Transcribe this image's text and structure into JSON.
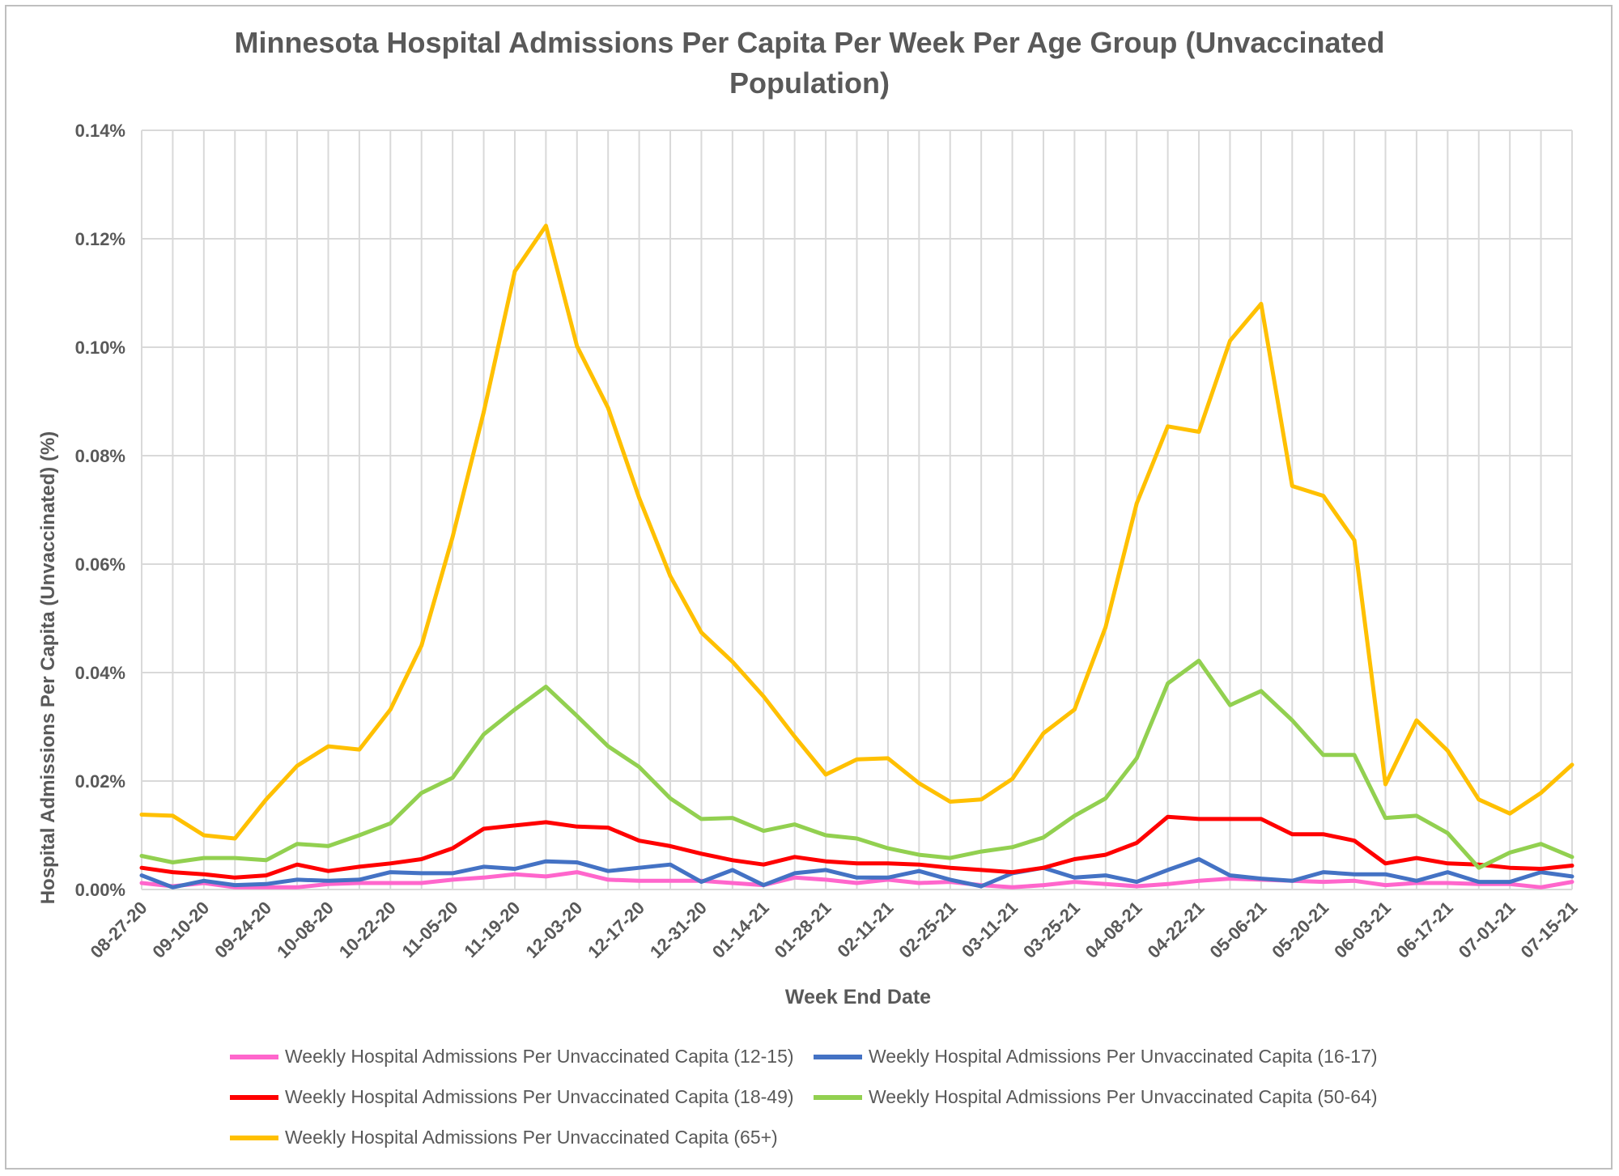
{
  "chart_data": {
    "type": "line",
    "title": "Minnesota Hospital Admissions Per Capita Per Week Per Age Group (Unvaccinated Population)",
    "xlabel": "Week End Date",
    "ylabel": "Hospital Admissions Per Capita (Unvaccinated) (%)",
    "ylim": [
      0,
      0.14
    ],
    "yticks": [
      "0.00%",
      "0.02%",
      "0.04%",
      "0.06%",
      "0.08%",
      "0.10%",
      "0.12%",
      "0.14%"
    ],
    "y_unit": "%",
    "grid": true,
    "legend_position": "bottom",
    "x": [
      "08-27-20",
      "09-03-20",
      "09-10-20",
      "09-17-20",
      "09-24-20",
      "10-01-20",
      "10-08-20",
      "10-15-20",
      "10-22-20",
      "10-29-20",
      "11-05-20",
      "11-12-20",
      "11-19-20",
      "11-26-20",
      "12-03-20",
      "12-10-20",
      "12-17-20",
      "12-24-20",
      "12-31-20",
      "01-07-21",
      "01-14-21",
      "01-21-21",
      "01-28-21",
      "02-04-21",
      "02-11-21",
      "02-18-21",
      "02-25-21",
      "03-04-21",
      "03-11-21",
      "03-18-21",
      "03-25-21",
      "04-01-21",
      "04-08-21",
      "04-15-21",
      "04-22-21",
      "04-29-21",
      "05-06-21",
      "05-13-21",
      "05-20-21",
      "05-27-21",
      "06-03-21",
      "06-10-21",
      "06-17-21",
      "06-24-21",
      "07-01-21",
      "07-08-21",
      "07-15-21"
    ],
    "x_tick_labels": [
      "08-27-20",
      "09-10-20",
      "09-24-20",
      "10-08-20",
      "10-22-20",
      "11-05-20",
      "11-19-20",
      "12-03-20",
      "12-17-20",
      "12-31-20",
      "01-14-21",
      "01-28-21",
      "02-11-21",
      "02-25-21",
      "03-11-21",
      "03-25-21",
      "04-08-21",
      "04-22-21",
      "05-06-21",
      "05-20-21",
      "06-03-21",
      "06-17-21",
      "07-01-21",
      "07-15-21"
    ],
    "series": [
      {
        "name": "Weekly Hospital Admissions Per Unvaccinated Capita (12-15)",
        "color": "#ff66cc",
        "values": [
          0.0012,
          0.0006,
          0.0012,
          0.0004,
          0.0004,
          0.0004,
          0.001,
          0.0012,
          0.0012,
          0.0012,
          0.0018,
          0.0022,
          0.0028,
          0.0024,
          0.0032,
          0.0018,
          0.0016,
          0.0016,
          0.0016,
          0.0012,
          0.0008,
          0.0022,
          0.0018,
          0.0012,
          0.0018,
          0.0012,
          0.0014,
          0.0008,
          0.0004,
          0.0008,
          0.0014,
          0.001,
          0.0006,
          0.001,
          0.0016,
          0.002,
          0.0018,
          0.0016,
          0.0014,
          0.0016,
          0.0008,
          0.0012,
          0.0012,
          0.001,
          0.001,
          0.0004,
          0.0014
        ]
      },
      {
        "name": "Weekly Hospital Admissions Per Unvaccinated Capita (16-17)",
        "color": "#4472c4",
        "values": [
          0.0026,
          0.0004,
          0.0016,
          0.0008,
          0.001,
          0.0018,
          0.0016,
          0.0018,
          0.0032,
          0.003,
          0.003,
          0.0042,
          0.0038,
          0.0052,
          0.005,
          0.0034,
          0.004,
          0.0046,
          0.0014,
          0.0036,
          0.0008,
          0.003,
          0.0036,
          0.0022,
          0.0022,
          0.0034,
          0.0018,
          0.0006,
          0.003,
          0.004,
          0.0022,
          0.0026,
          0.0014,
          0.0036,
          0.0056,
          0.0026,
          0.002,
          0.0016,
          0.0032,
          0.0028,
          0.0028,
          0.0016,
          0.0032,
          0.0014,
          0.0014,
          0.0032,
          0.0024
        ]
      },
      {
        "name": "Weekly Hospital Admissions Per Unvaccinated Capita (18-49)",
        "color": "#ff0000",
        "values": [
          0.004,
          0.0032,
          0.0028,
          0.0022,
          0.0026,
          0.0046,
          0.0034,
          0.0042,
          0.0048,
          0.0056,
          0.0076,
          0.0112,
          0.0118,
          0.0124,
          0.0116,
          0.0114,
          0.009,
          0.008,
          0.0066,
          0.0054,
          0.0046,
          0.006,
          0.0052,
          0.0048,
          0.0048,
          0.0046,
          0.004,
          0.0036,
          0.0032,
          0.004,
          0.0056,
          0.0064,
          0.0086,
          0.0134,
          0.013,
          0.013,
          0.013,
          0.0102,
          0.0102,
          0.009,
          0.0048,
          0.0058,
          0.0048,
          0.0046,
          0.004,
          0.0038,
          0.0044
        ]
      },
      {
        "name": "Weekly Hospital Admissions Per Unvaccinated Capita (50-64)",
        "color": "#92d050",
        "values": [
          0.0062,
          0.005,
          0.0058,
          0.0058,
          0.0054,
          0.0084,
          0.008,
          0.01,
          0.0122,
          0.0178,
          0.0206,
          0.0286,
          0.0332,
          0.0374,
          0.032,
          0.0264,
          0.0226,
          0.0168,
          0.013,
          0.0132,
          0.0108,
          0.012,
          0.01,
          0.0094,
          0.0076,
          0.0064,
          0.0058,
          0.007,
          0.0078,
          0.0096,
          0.0136,
          0.0168,
          0.0242,
          0.038,
          0.0422,
          0.034,
          0.0366,
          0.0312,
          0.0248,
          0.0248,
          0.0132,
          0.0136,
          0.0104,
          0.004,
          0.0068,
          0.0084,
          0.006
        ]
      },
      {
        "name": "Weekly Hospital Admissions Per Unvaccinated Capita (65+)",
        "color": "#ffc000",
        "values": [
          0.0138,
          0.0136,
          0.01,
          0.0094,
          0.0166,
          0.0228,
          0.0264,
          0.0258,
          0.0332,
          0.045,
          0.065,
          0.088,
          0.114,
          0.1224,
          0.1002,
          0.0888,
          0.0722,
          0.0578,
          0.0474,
          0.042,
          0.0356,
          0.0282,
          0.0212,
          0.024,
          0.0242,
          0.0196,
          0.0162,
          0.0166,
          0.0204,
          0.0288,
          0.0332,
          0.0484,
          0.0712,
          0.0854,
          0.0844,
          0.1012,
          0.108,
          0.0744,
          0.0726,
          0.0644,
          0.0194,
          0.0312,
          0.0256,
          0.0166,
          0.014,
          0.0178,
          0.023
        ]
      }
    ]
  }
}
